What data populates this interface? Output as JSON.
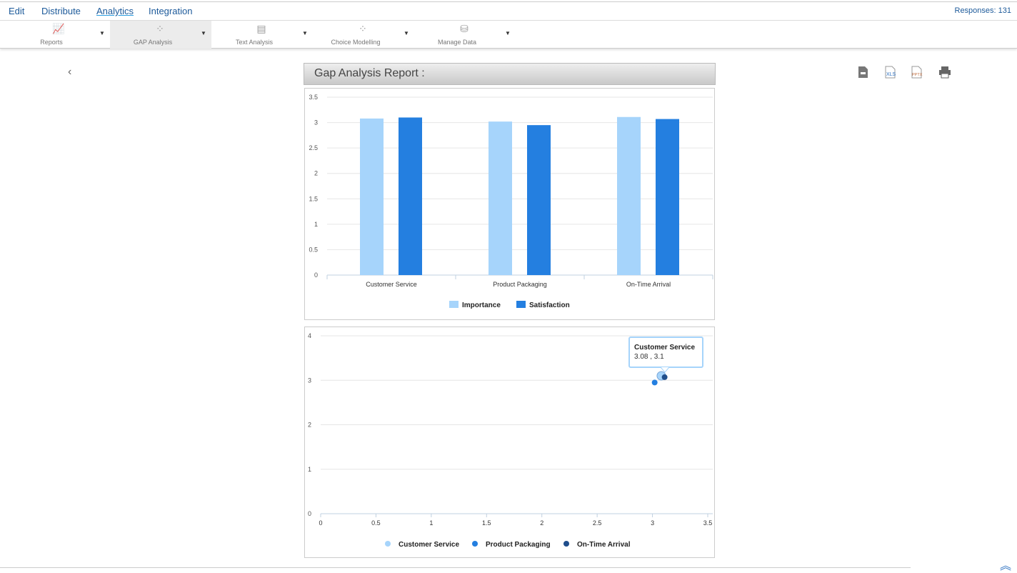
{
  "nav": {
    "items": [
      "Edit",
      "Distribute",
      "Analytics",
      "Integration"
    ],
    "active": "Analytics",
    "responses": "Responses: 131"
  },
  "toolbar": {
    "items": [
      {
        "label": "Reports",
        "icon": "line-chart-icon"
      },
      {
        "label": "GAP Analysis",
        "icon": "scatter-chart-icon",
        "selected": true
      },
      {
        "label": "Text Analysis",
        "icon": "document-icon"
      },
      {
        "label": "Choice Modelling",
        "icon": "scatter-chart-icon"
      },
      {
        "label": "Manage Data",
        "icon": "database-icon"
      }
    ]
  },
  "report": {
    "title": "Gap Analysis Report :",
    "exports": [
      "PDF",
      "XLS",
      "PPTX",
      "Print"
    ]
  },
  "colors": {
    "importance": "#a6d4fb",
    "satisfaction": "#247fe0",
    "customer_service": "#a6d4fb",
    "product_packaging": "#247fe0",
    "on_time_arrival": "#1f4e8c"
  },
  "chart_data": [
    {
      "type": "bar",
      "categories": [
        "Customer Service",
        "Product Packaging",
        "On-Time Arrival"
      ],
      "series": [
        {
          "name": "Importance",
          "values": [
            3.08,
            3.02,
            3.11
          ]
        },
        {
          "name": "Satisfaction",
          "values": [
            3.1,
            2.95,
            3.07
          ]
        }
      ],
      "yticks": [
        "0",
        "0.5",
        "1",
        "1.5",
        "2",
        "2.5",
        "3",
        "3.5"
      ],
      "ylim": [
        0,
        3.5
      ],
      "grid": true,
      "legend": "bottom"
    },
    {
      "type": "scatter",
      "series": [
        {
          "name": "Customer Service",
          "x": 3.08,
          "y": 3.1
        },
        {
          "name": "Product Packaging",
          "x": 3.02,
          "y": 2.95
        },
        {
          "name": "On-Time Arrival",
          "x": 3.11,
          "y": 3.07
        }
      ],
      "xticks": [
        "0",
        "0.5",
        "1",
        "1.5",
        "2",
        "2.5",
        "3",
        "3.5"
      ],
      "yticks": [
        "0",
        "1",
        "2",
        "3",
        "4"
      ],
      "xlim": [
        0,
        3.5
      ],
      "ylim": [
        0,
        4
      ],
      "grid": true,
      "legend": "bottom",
      "tooltip": {
        "title": "Customer Service",
        "value": "3.08 , 3.1"
      }
    }
  ]
}
